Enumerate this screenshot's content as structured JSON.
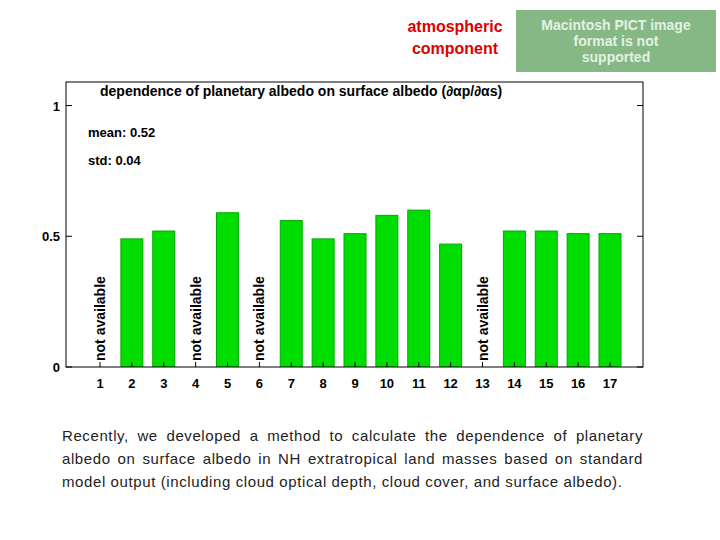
{
  "header": "atmospheric component",
  "placeholder": "Macintosh PICT image format is not supported",
  "caption": "Recently, we developed a method to calculate the dependence of planetary albedo on surface albedo in NH extratropical land masses based on standard model output (including cloud optical depth, cloud cover, and surface albedo).",
  "chart_data": {
    "type": "bar",
    "title": "dependence of planetary albedo on surface albedo (∂αp/∂αs)",
    "annotations": [
      "mean: 0.52",
      "std: 0.04"
    ],
    "missing_label": "not available",
    "categories": [
      "1",
      "2",
      "3",
      "4",
      "5",
      "6",
      "7",
      "8",
      "9",
      "10",
      "11",
      "12",
      "13",
      "14",
      "15",
      "16",
      "17"
    ],
    "values": [
      null,
      0.49,
      0.52,
      null,
      0.59,
      null,
      0.56,
      0.49,
      0.51,
      0.58,
      0.6,
      0.47,
      null,
      0.52,
      0.52,
      0.51,
      0.51
    ],
    "color": "#00dd00",
    "ylim": [
      0,
      1.09
    ],
    "yticks": [
      0,
      0.5,
      1
    ],
    "grid": false
  }
}
